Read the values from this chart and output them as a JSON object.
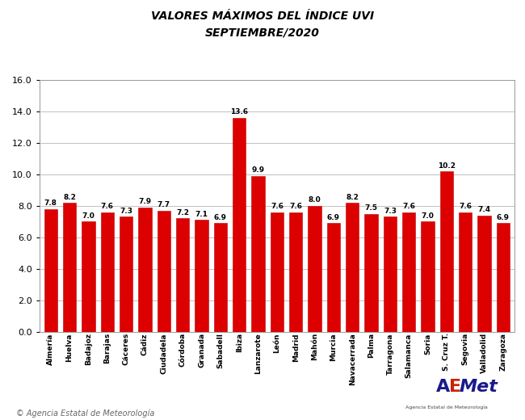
{
  "title_line1": "VALORES MÁXIMOS DEL ÍNDICE UVI",
  "title_line2": "SEPTIEMBRE/2020",
  "labels": [
    "Almería",
    "Huelva",
    "Badajoz",
    "Barajas",
    "Cáceres",
    "Cádiz",
    "Ciudadela",
    "Córdoba",
    "Granada",
    "Sabadell",
    "Ibiza",
    "Lanzarote",
    "León",
    "Madrid",
    "Mahón",
    "Murcia",
    "Navacerrada",
    "Palma",
    "Tarragona",
    "Salamanca",
    "Soria",
    "S. Cruz T.",
    "Segovia",
    "Valladolid",
    "Zaragoza"
  ],
  "values": [
    7.8,
    8.2,
    7.0,
    7.6,
    7.3,
    7.9,
    7.7,
    7.2,
    7.1,
    6.9,
    13.6,
    9.9,
    7.6,
    7.6,
    8.0,
    6.9,
    8.2,
    7.5,
    7.3,
    7.6,
    7.0,
    10.2,
    7.6,
    7.4,
    6.9
  ],
  "bar_color": "#DD0000",
  "bar_edge_color": "#BB0000",
  "ylim": [
    0.0,
    16.0
  ],
  "yticks": [
    0.0,
    2.0,
    4.0,
    6.0,
    8.0,
    10.0,
    12.0,
    14.0,
    16.0
  ],
  "grid_color": "#C0C0C0",
  "background_color": "#FFFFFF",
  "title_fontsize": 10,
  "value_fontsize": 6.5,
  "label_fontsize": 6.5,
  "ytick_fontsize": 8,
  "copyright_text": "© Agencia Estatal de Meteorología",
  "copyright_fontsize": 7
}
